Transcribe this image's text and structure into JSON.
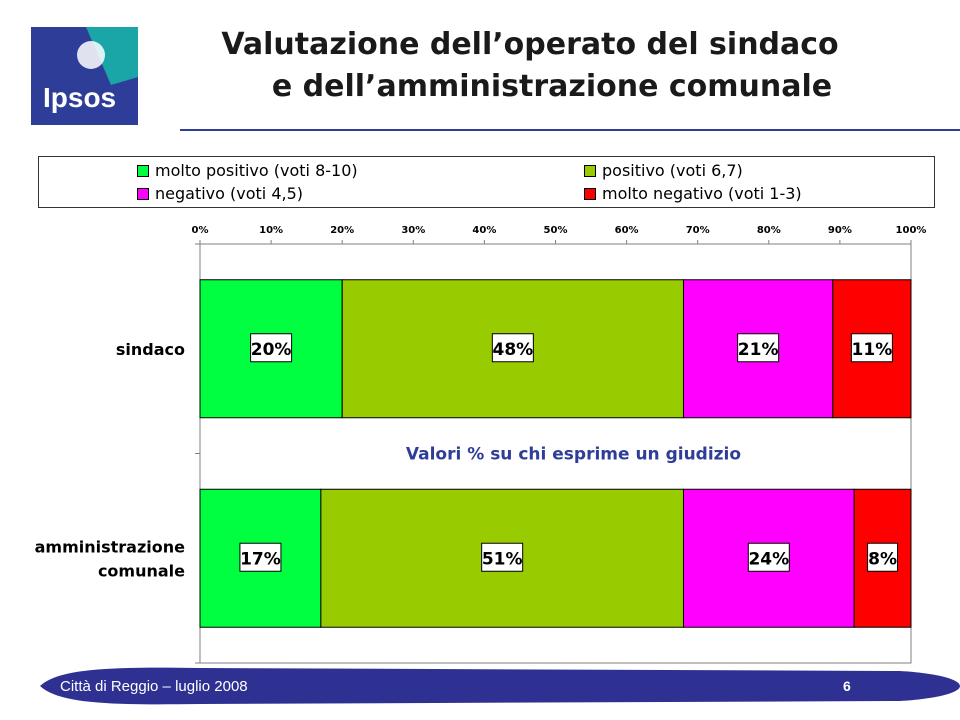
{
  "header": {
    "logo_text": "Ipsos",
    "title_line1": "Valutazione dell’operato del sindaco",
    "title_line2": "e dell’amministrazione comunale"
  },
  "legend": {
    "items": [
      {
        "label": "molto positivo (voti 8-10)",
        "color": "#00ff40"
      },
      {
        "label": "positivo (voti 6,7)",
        "color": "#99cc00"
      },
      {
        "label": "negativo (voti 4,5)",
        "color": "#ff00ff"
      },
      {
        "label": "molto negativo (voti 1-3)",
        "color": "#ff0000"
      }
    ]
  },
  "chart_data": {
    "type": "bar",
    "orientation": "horizontal",
    "stacked": true,
    "categories": [
      "sindaco",
      "amministrazione comunale"
    ],
    "category_lines": [
      [
        "sindaco"
      ],
      [
        "amministrazione",
        "comunale"
      ]
    ],
    "series": [
      {
        "name": "molto positivo (voti 8-10)",
        "color": "#00ff40",
        "values": [
          20,
          17
        ]
      },
      {
        "name": "positivo (voti 6,7)",
        "color": "#99cc00",
        "values": [
          48,
          51
        ]
      },
      {
        "name": "negativo (voti 4,5)",
        "color": "#ff00ff",
        "values": [
          21,
          24
        ]
      },
      {
        "name": "molto negativo (voti 1-3)",
        "color": "#ff0000",
        "values": [
          11,
          8
        ]
      }
    ],
    "data_labels": [
      [
        "20%",
        "48%",
        "21%",
        "11%"
      ],
      [
        "17%",
        "51%",
        "24%",
        "8%"
      ]
    ],
    "xlim": [
      0,
      100
    ],
    "xticks": [
      "0%",
      "10%",
      "20%",
      "30%",
      "40%",
      "50%",
      "60%",
      "70%",
      "80%",
      "90%",
      "100%"
    ],
    "annotation": "Valori % su chi esprime un giudizio",
    "legend_position": "top"
  },
  "footer": {
    "text": "Città di Reggio – luglio 2008",
    "page": "6"
  }
}
